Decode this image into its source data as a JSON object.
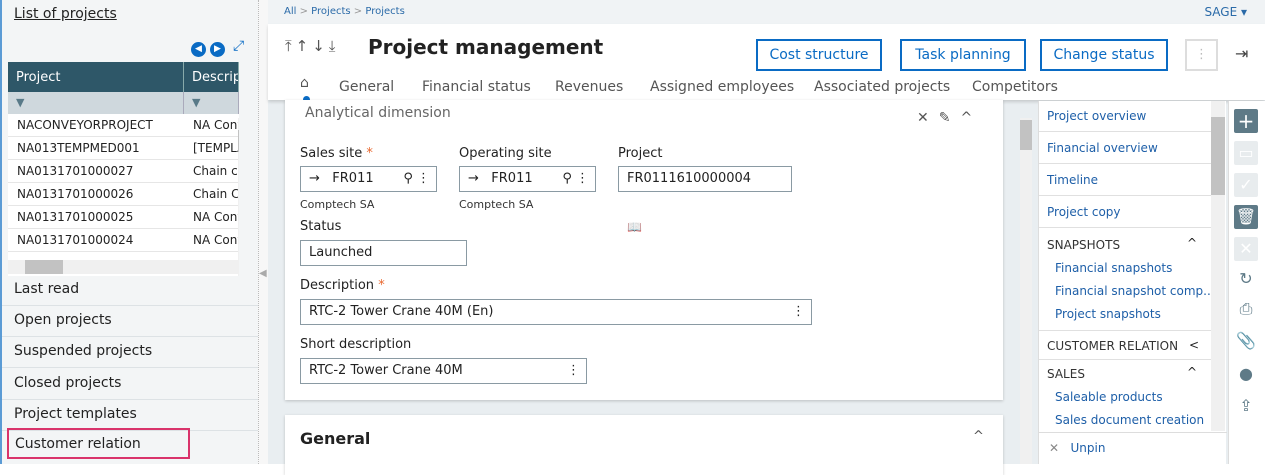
{
  "left": {
    "title": "List of projects",
    "columns": [
      "Project",
      "Description"
    ],
    "rows": [
      [
        "NACONVEYORPROJECT",
        "NA Conv"
      ],
      [
        "NA013TEMPMED001",
        "[TEMPLA"
      ],
      [
        "NA0131701000027",
        "Chain co"
      ],
      [
        "NA0131701000026",
        "Chain Co"
      ],
      [
        "NA0131701000025",
        "NA Conv"
      ],
      [
        "NA0131701000024",
        "NA Conv"
      ]
    ],
    "links": [
      "Last read",
      "Open projects",
      "Suspended projects",
      "Closed projects",
      "Project templates",
      "Customer relation"
    ]
  },
  "breadcrumb": [
    "All",
    "Projects",
    "Projects"
  ],
  "user": "SAGE",
  "header": {
    "title": "Project management",
    "buttons": [
      "Cost structure",
      "Task planning",
      "Change status"
    ]
  },
  "tabs": [
    "General",
    "Financial status",
    "Revenues",
    "Assigned employees",
    "Associated projects",
    "Competitors"
  ],
  "card": {
    "title": "Analytical dimension",
    "sales_site": {
      "label": "Sales site",
      "value": "FR011",
      "sub": "Comptech SA"
    },
    "operating_site": {
      "label": "Operating site",
      "value": "FR011",
      "sub": "Comptech SA"
    },
    "project": {
      "label": "Project",
      "value": "FR0111610000004"
    },
    "status": {
      "label": "Status",
      "value": "Launched"
    },
    "description": {
      "label": "Description",
      "value": "RTC-2 Tower Crane 40M (En)"
    },
    "short_description": {
      "label": "Short description",
      "value": "RTC-2 Tower Crane 40M"
    }
  },
  "general_card": {
    "title": "General"
  },
  "right_panel": {
    "items": [
      "Project overview",
      "Financial overview",
      "Timeline",
      "Project copy"
    ],
    "snapshots": {
      "title": "SNAPSHOTS",
      "items": [
        "Financial snapshots",
        "Financial snapshot comp...",
        "Project snapshots"
      ]
    },
    "customer_relation": "CUSTOMER RELATION",
    "sales": {
      "title": "SALES",
      "items": [
        "Saleable products",
        "Sales document creation"
      ]
    },
    "unpin": "Unpin"
  },
  "colors": {
    "accent": "#0a6bc4",
    "grid_header": "#2e5768",
    "action_icon": "#5e7a87"
  }
}
